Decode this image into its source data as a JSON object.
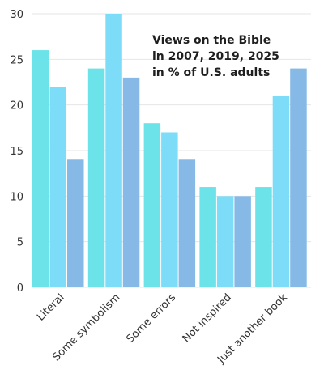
{
  "chart_data": {
    "type": "bar",
    "title_lines": [
      "Views on the Bible",
      "in 2007, 2019, 2025",
      "in % of U.S. adults"
    ],
    "categories": [
      "Literal",
      "Some symbolism",
      "Some errors",
      "Not inspired",
      "Just another book"
    ],
    "series": [
      {
        "values": [
          26,
          24,
          18,
          11,
          11
        ]
      },
      {
        "values": [
          22,
          30,
          17,
          10,
          21
        ]
      },
      {
        "values": [
          14,
          23,
          14,
          10,
          24
        ]
      }
    ],
    "ylim": [
      0,
      30
    ],
    "yticks": [
      0,
      5,
      10,
      15,
      20,
      25,
      30
    ],
    "grid": true,
    "colors": [
      "#6be3e8",
      "#7ddcf7",
      "#86b9e6"
    ]
  }
}
